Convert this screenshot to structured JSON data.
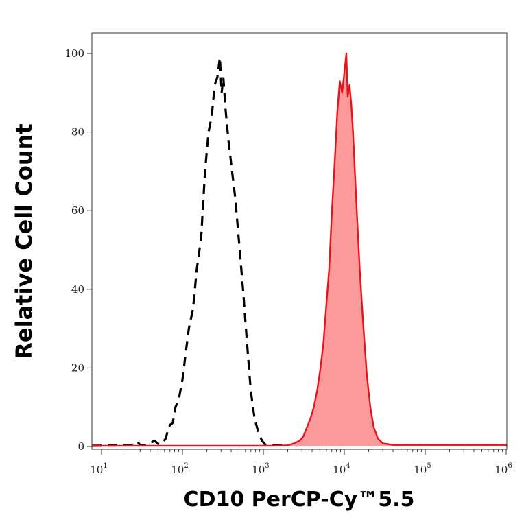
{
  "chart_data": {
    "type": "area",
    "xlabel": "CD10 PerCP-Cy™5.5",
    "ylabel": "Relative Cell Count",
    "x_scale": "log",
    "xlim": [
      10,
      1000000
    ],
    "ylim": [
      0,
      100
    ],
    "grid": false,
    "x_ticks": [
      {
        "base": "10",
        "exp": "1",
        "value": 10
      },
      {
        "base": "10",
        "exp": "2",
        "value": 100
      },
      {
        "base": "10",
        "exp": "3",
        "value": 1000
      },
      {
        "base": "10",
        "exp": "4",
        "value": 10000
      },
      {
        "base": "10",
        "exp": "5",
        "value": 100000
      },
      {
        "base": "10",
        "exp": "6",
        "value": 1000000
      }
    ],
    "y_ticks": [
      "0",
      "20",
      "40",
      "60",
      "80",
      "100"
    ],
    "series": [
      {
        "style": "dashed",
        "color": "#000000",
        "fill": "none",
        "points": [
          [
            7.6,
            0.2
          ],
          [
            22,
            0.3
          ],
          [
            26,
            0.6
          ],
          [
            28,
            1.2
          ],
          [
            30,
            0.3
          ],
          [
            36,
            0.3
          ],
          [
            40,
            0.8
          ],
          [
            45,
            1.5
          ],
          [
            50,
            0.7
          ],
          [
            55,
            0.6
          ],
          [
            62,
            2.0
          ],
          [
            66,
            4.0
          ],
          [
            70,
            5.5
          ],
          [
            76,
            6.0
          ],
          [
            82,
            10.0
          ],
          [
            90,
            12.0
          ],
          [
            100,
            17.0
          ],
          [
            110,
            24.0
          ],
          [
            120,
            30.0
          ],
          [
            135,
            35.0
          ],
          [
            150,
            45.0
          ],
          [
            170,
            53.0
          ],
          [
            190,
            70.0
          ],
          [
            210,
            80.0
          ],
          [
            230,
            84.0
          ],
          [
            250,
            92.0
          ],
          [
            270,
            94.0
          ],
          [
            290,
            99.0
          ],
          [
            305,
            90.0
          ],
          [
            320,
            94.0
          ],
          [
            340,
            86.0
          ],
          [
            370,
            78.0
          ],
          [
            400,
            72.0
          ],
          [
            450,
            63.0
          ],
          [
            500,
            52.0
          ],
          [
            560,
            40.0
          ],
          [
            630,
            26.0
          ],
          [
            700,
            14.0
          ],
          [
            780,
            7.0
          ],
          [
            870,
            3.5
          ],
          [
            960,
            1.5
          ],
          [
            1050,
            0.5
          ],
          [
            1200,
            0.3
          ],
          [
            1800,
            0.4
          ],
          [
            3000,
            0.2
          ]
        ]
      },
      {
        "style": "solid",
        "color": "#e8131b",
        "fill": "#fa9a9a",
        "points": [
          [
            7.6,
            0.2
          ],
          [
            1400,
            0.2
          ],
          [
            2000,
            0.3
          ],
          [
            2400,
            0.8
          ],
          [
            2800,
            1.5
          ],
          [
            3100,
            2.5
          ],
          [
            3400,
            4.5
          ],
          [
            3800,
            7.0
          ],
          [
            4200,
            10.0
          ],
          [
            4600,
            14.0
          ],
          [
            5000,
            19.0
          ],
          [
            5500,
            26.0
          ],
          [
            6000,
            36.0
          ],
          [
            6500,
            45.0
          ],
          [
            7000,
            59.0
          ],
          [
            7600,
            72.0
          ],
          [
            8200,
            85.0
          ],
          [
            8800,
            93.0
          ],
          [
            9400,
            90.0
          ],
          [
            10000,
            95.0
          ],
          [
            10600,
            100.0
          ],
          [
            11000,
            89.0
          ],
          [
            11600,
            92.0
          ],
          [
            12200,
            87.0
          ],
          [
            12800,
            80.0
          ],
          [
            13500,
            70.0
          ],
          [
            14500,
            57.0
          ],
          [
            15500,
            45.0
          ],
          [
            17000,
            32.0
          ],
          [
            19000,
            18.0
          ],
          [
            21000,
            10.0
          ],
          [
            23000,
            5.0
          ],
          [
            26000,
            2.0
          ],
          [
            30000,
            0.8
          ],
          [
            40000,
            0.4
          ],
          [
            1000000,
            0.4
          ],
          [
            1300000,
            0.2
          ]
        ]
      }
    ]
  }
}
